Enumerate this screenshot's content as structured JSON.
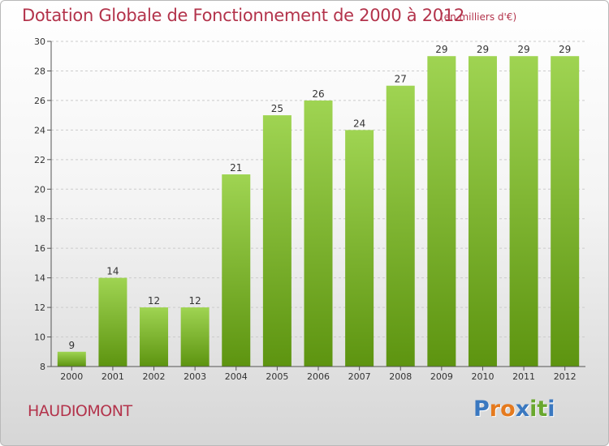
{
  "title": "Dotation Globale de Fonctionnement de 2000 à 2012",
  "subtitle": "(en milliers d'€)",
  "commune": "HAUDIOMONT",
  "logo": {
    "letters": [
      "P",
      "r",
      "o",
      "x",
      "i",
      "t",
      "i"
    ],
    "colors": [
      "#3a78c0",
      "#e57a1e",
      "#e57a1e",
      "#3a78c0",
      "#6aa82e",
      "#6aa82e",
      "#3a78c0"
    ]
  },
  "colors": {
    "bar_top": "#9fd452",
    "bar_bottom": "#5d9410",
    "axis": "#555555",
    "grid": "#cccccc",
    "title": "#b3334b"
  },
  "chart_data": {
    "type": "bar",
    "title": "Dotation Globale de Fonctionnement de 2000 à 2012",
    "subtitle": "(en milliers d'€)",
    "categories": [
      "2000",
      "2001",
      "2002",
      "2003",
      "2004",
      "2005",
      "2006",
      "2007",
      "2008",
      "2009",
      "2010",
      "2011",
      "2012"
    ],
    "values": [
      9,
      14,
      12,
      12,
      21,
      25,
      26,
      24,
      27,
      29,
      29,
      29,
      29
    ],
    "ylim": [
      8,
      30
    ],
    "yticks": [
      8,
      10,
      12,
      14,
      16,
      18,
      20,
      22,
      24,
      26,
      28,
      30
    ],
    "grid": true,
    "data_labels": true
  }
}
